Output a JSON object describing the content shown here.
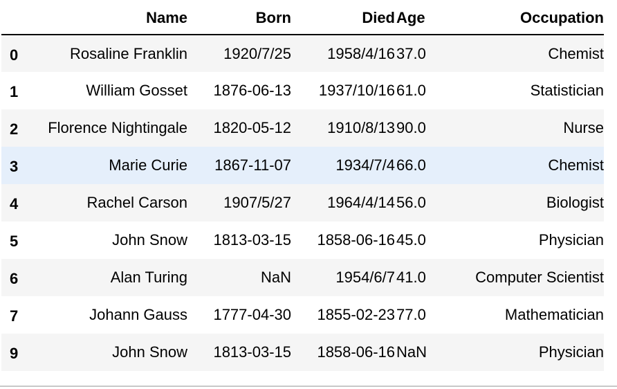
{
  "table": {
    "columns": [
      "Name",
      "Born",
      "Died",
      "Age",
      "Occupation"
    ],
    "rows": [
      {
        "index": "0",
        "name": "Rosaline Franklin",
        "born": "1920/7/25",
        "died": "1958/4/16",
        "age": "37.0",
        "occupation": "Chemist"
      },
      {
        "index": "1",
        "name": "William Gosset",
        "born": "1876-06-13",
        "died": "1937/10/16",
        "age": "61.0",
        "occupation": "Statistician"
      },
      {
        "index": "2",
        "name": "Florence Nightingale",
        "born": "1820-05-12",
        "died": "1910/8/13",
        "age": "90.0",
        "occupation": "Nurse"
      },
      {
        "index": "3",
        "name": "Marie Curie",
        "born": "1867-11-07",
        "died": "1934/7/4",
        "age": "66.0",
        "occupation": "Chemist"
      },
      {
        "index": "4",
        "name": "Rachel Carson",
        "born": "1907/5/27",
        "died": "1964/4/14",
        "age": "56.0",
        "occupation": "Biologist"
      },
      {
        "index": "5",
        "name": "John Snow",
        "born": "1813-03-15",
        "died": "1858-06-16",
        "age": "45.0",
        "occupation": "Physician"
      },
      {
        "index": "6",
        "name": "Alan Turing",
        "born": "NaN",
        "died": "1954/6/7",
        "age": "41.0",
        "occupation": "Computer Scientist"
      },
      {
        "index": "7",
        "name": "Johann Gauss",
        "born": "1777-04-30",
        "died": "1855-02-23",
        "age": "77.0",
        "occupation": "Mathematician"
      },
      {
        "index": "9",
        "name": "John Snow",
        "born": "1813-03-15",
        "died": "1858-06-16",
        "age": "NaN",
        "occupation": "Physician"
      }
    ]
  },
  "colors": {
    "row_stripe": "#f5f5f5",
    "row_hover": "#e5effb",
    "header_rule": "#000000"
  },
  "hovered_row_index": "3"
}
